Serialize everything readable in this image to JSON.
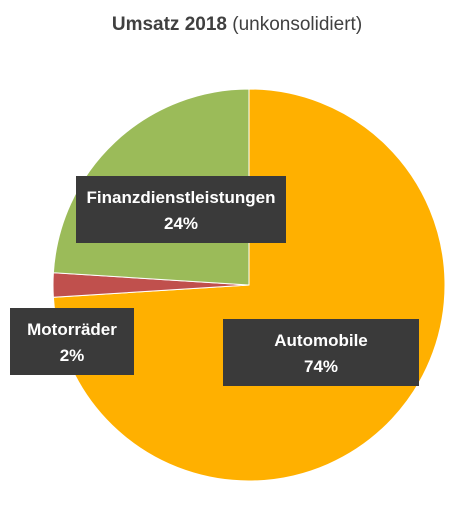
{
  "chart_data": {
    "type": "pie",
    "title_bold": "Umsatz 2018",
    "title_rest": "(unkonsolidiert)",
    "slices": [
      {
        "label": "Automobile",
        "percent_label": "74%",
        "value": 74,
        "color": "#FFB000"
      },
      {
        "label": "Motorräder",
        "percent_label": "2%",
        "value": 2,
        "color": "#C0504D"
      },
      {
        "label": "Finanzdienstleistungen",
        "percent_label": "24%",
        "value": 24,
        "color": "#9BBB59"
      }
    ],
    "label_box_color": "#3A3A3A",
    "legend": "none"
  }
}
